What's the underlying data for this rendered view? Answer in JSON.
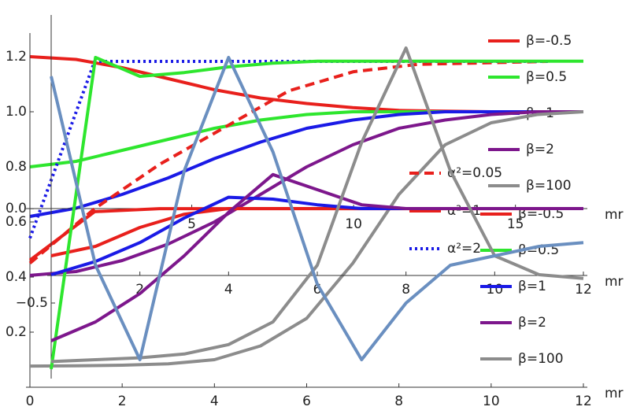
{
  "chart_data": [
    {
      "type": "line",
      "x_label": "mr",
      "xlim": [
        0,
        12
      ],
      "xticks": [
        0,
        2,
        4,
        6,
        8,
        10,
        12
      ],
      "ylim": [
        0,
        1.2
      ],
      "yticks": [
        {
          "value": 0.2,
          "label": "0.2"
        },
        {
          "value": 0.4,
          "label": "0.4"
        },
        {
          "value": 0.6,
          "label": "0.6"
        },
        {
          "value": 0.8,
          "label": "0.8"
        },
        {
          "value": 1,
          "label": "1.0"
        },
        {
          "value": 1.2,
          "label": "1.2"
        }
      ],
      "legend": "right",
      "x": [
        0,
        1,
        2,
        3,
        4,
        5,
        6,
        7,
        8,
        9,
        10,
        11,
        12
      ],
      "series": [
        {
          "name": "β=-0.5",
          "color": "#e8201c",
          "values": [
            1.2,
            1.19,
            1.16,
            1.12,
            1.08,
            1.05,
            1.03,
            1.015,
            1.005,
            1.002,
            1.0,
            1.0,
            1.0
          ]
        },
        {
          "name": "β=0.5",
          "color": "#2ee62e",
          "values": [
            0.8,
            0.82,
            0.86,
            0.9,
            0.94,
            0.97,
            0.99,
            1.0,
            1.0,
            1.0,
            1.0,
            1.0,
            1.0
          ]
        },
        {
          "name": "β=1",
          "color": "#1a1ae6",
          "values": [
            0.62,
            0.65,
            0.7,
            0.76,
            0.83,
            0.89,
            0.94,
            0.97,
            0.99,
            1.0,
            1.0,
            1.0,
            1.0
          ]
        },
        {
          "name": "β=2",
          "color": "#7d178c",
          "values": [
            0.406,
            0.42,
            0.46,
            0.52,
            0.6,
            0.7,
            0.8,
            0.88,
            0.94,
            0.97,
            0.99,
            1.0,
            1.0
          ]
        },
        {
          "name": "β=100",
          "color": "#8c8c8c",
          "values": [
            0.077,
            0.078,
            0.08,
            0.085,
            0.1,
            0.15,
            0.25,
            0.45,
            0.7,
            0.88,
            0.96,
            0.99,
            1.0
          ]
        }
      ]
    },
    {
      "type": "line",
      "x_label": "mr",
      "xlim": [
        0,
        17.1
      ],
      "xticks": [
        5,
        10,
        15
      ],
      "ylim": [
        -0.4,
        1
      ],
      "yticks": [
        {
          "value": 0,
          "label": "0.0"
        }
      ],
      "legend": "right",
      "x": [
        0,
        2,
        4,
        6,
        8,
        10,
        12,
        14,
        16
      ],
      "series": [
        {
          "name": "α²=0.05",
          "color": "#e8201c",
          "dash": "dashed",
          "values": [
            -0.37,
            0.0,
            0.3,
            0.55,
            0.8,
            0.93,
            0.98,
            0.99,
            1.0
          ]
        },
        {
          "name": "α²=1",
          "color": "#e8201c",
          "dash": "solid",
          "values": [
            -0.35,
            -0.02,
            0,
            0,
            0,
            0,
            0,
            0,
            0
          ]
        },
        {
          "name": "α²=2",
          "color": "#1a1ae6",
          "dash": "dotted",
          "values": [
            -0.2,
            1,
            1,
            1,
            1,
            1,
            1,
            1,
            1
          ]
        }
      ]
    },
    {
      "type": "line",
      "x_label": "mr",
      "xlim": [
        0,
        12
      ],
      "xticks": [
        2,
        4,
        6,
        8,
        10,
        12
      ],
      "ylim": [
        -0.9,
        0.9
      ],
      "yticks": [
        {
          "value": -0.5,
          "label": "−0.5"
        }
      ],
      "legend": "right",
      "x": [
        0,
        1,
        2,
        3,
        4,
        5,
        6,
        7,
        8,
        9,
        10,
        11,
        12
      ],
      "series": [
        {
          "name": "β=-0.5",
          "color": "#e8201c",
          "values": [
            -0.25,
            -0.2,
            -0.1,
            -0.03,
            0,
            0,
            0,
            0,
            0,
            0,
            0,
            0,
            0
          ]
        },
        {
          "name": "β=0.5",
          "color": "#2ee62e",
          "values": [
            -0.85,
            0.8,
            0.7,
            0.72,
            0.75,
            0.77,
            0.78,
            0.78,
            0.78,
            0.78,
            0.78,
            0.78,
            0.78
          ]
        },
        {
          "name": "β=1",
          "color": "#1a1ae6",
          "values": [
            -0.35,
            -0.28,
            -0.18,
            -0.05,
            0.06,
            0.05,
            0.02,
            0,
            0,
            0,
            0,
            0,
            0
          ]
        },
        {
          "name": "β=2",
          "color": "#7d178c",
          "values": [
            -0.7,
            -0.6,
            -0.45,
            -0.25,
            -0.02,
            0.18,
            0.1,
            0.02,
            0,
            0,
            0,
            0,
            0
          ]
        },
        {
          "name": "β=100",
          "color": "#8c8c8c",
          "values": [
            -0.81,
            -0.8,
            -0.79,
            -0.77,
            -0.72,
            -0.6,
            -0.3,
            0.35,
            0.85,
            0.2,
            -0.25,
            -0.35,
            -0.37
          ]
        },
        {
          "color": "#6a8fc0",
          "values": [
            0.7,
            -0.3,
            -0.8,
            0.2,
            0.8,
            0.3,
            -0.4,
            -0.8,
            -0.5,
            -0.3,
            -0.25,
            -0.2,
            -0.18
          ]
        }
      ]
    }
  ]
}
